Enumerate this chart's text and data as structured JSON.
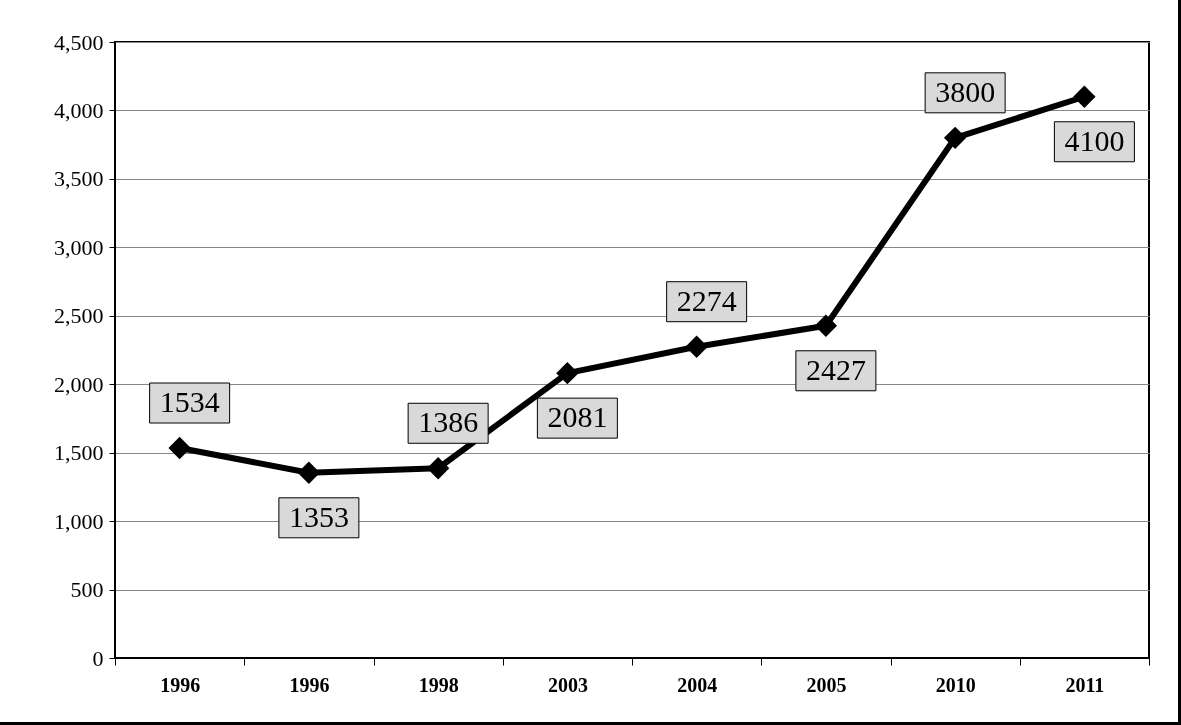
{
  "chart_data": {
    "type": "line",
    "categories": [
      "1996",
      "1996",
      "1998",
      "2003",
      "2004",
      "2005",
      "2010",
      "2011"
    ],
    "series": [
      {
        "color": "#000000",
        "values": [
          1534,
          1353,
          1386,
          2081,
          2274,
          2427,
          3800,
          4100
        ]
      }
    ],
    "ylim": [
      0,
      4500
    ],
    "yticks": [
      0,
      500,
      {
        "value": 1000,
        "label": "1,000"
      },
      {
        "value": 1500,
        "label": "1,500"
      },
      {
        "value": 2000,
        "label": "2,000"
      },
      {
        "value": 2500,
        "label": "2,500"
      },
      {
        "value": 3000,
        "label": "3,000"
      },
      {
        "value": 3500,
        "label": "3,500"
      },
      {
        "value": 4000,
        "label": "4,000"
      },
      {
        "value": 4500,
        "label": "4,500"
      }
    ],
    "grid": "y",
    "marker": "diamond",
    "line_style": "solid",
    "data_labels": true
  }
}
